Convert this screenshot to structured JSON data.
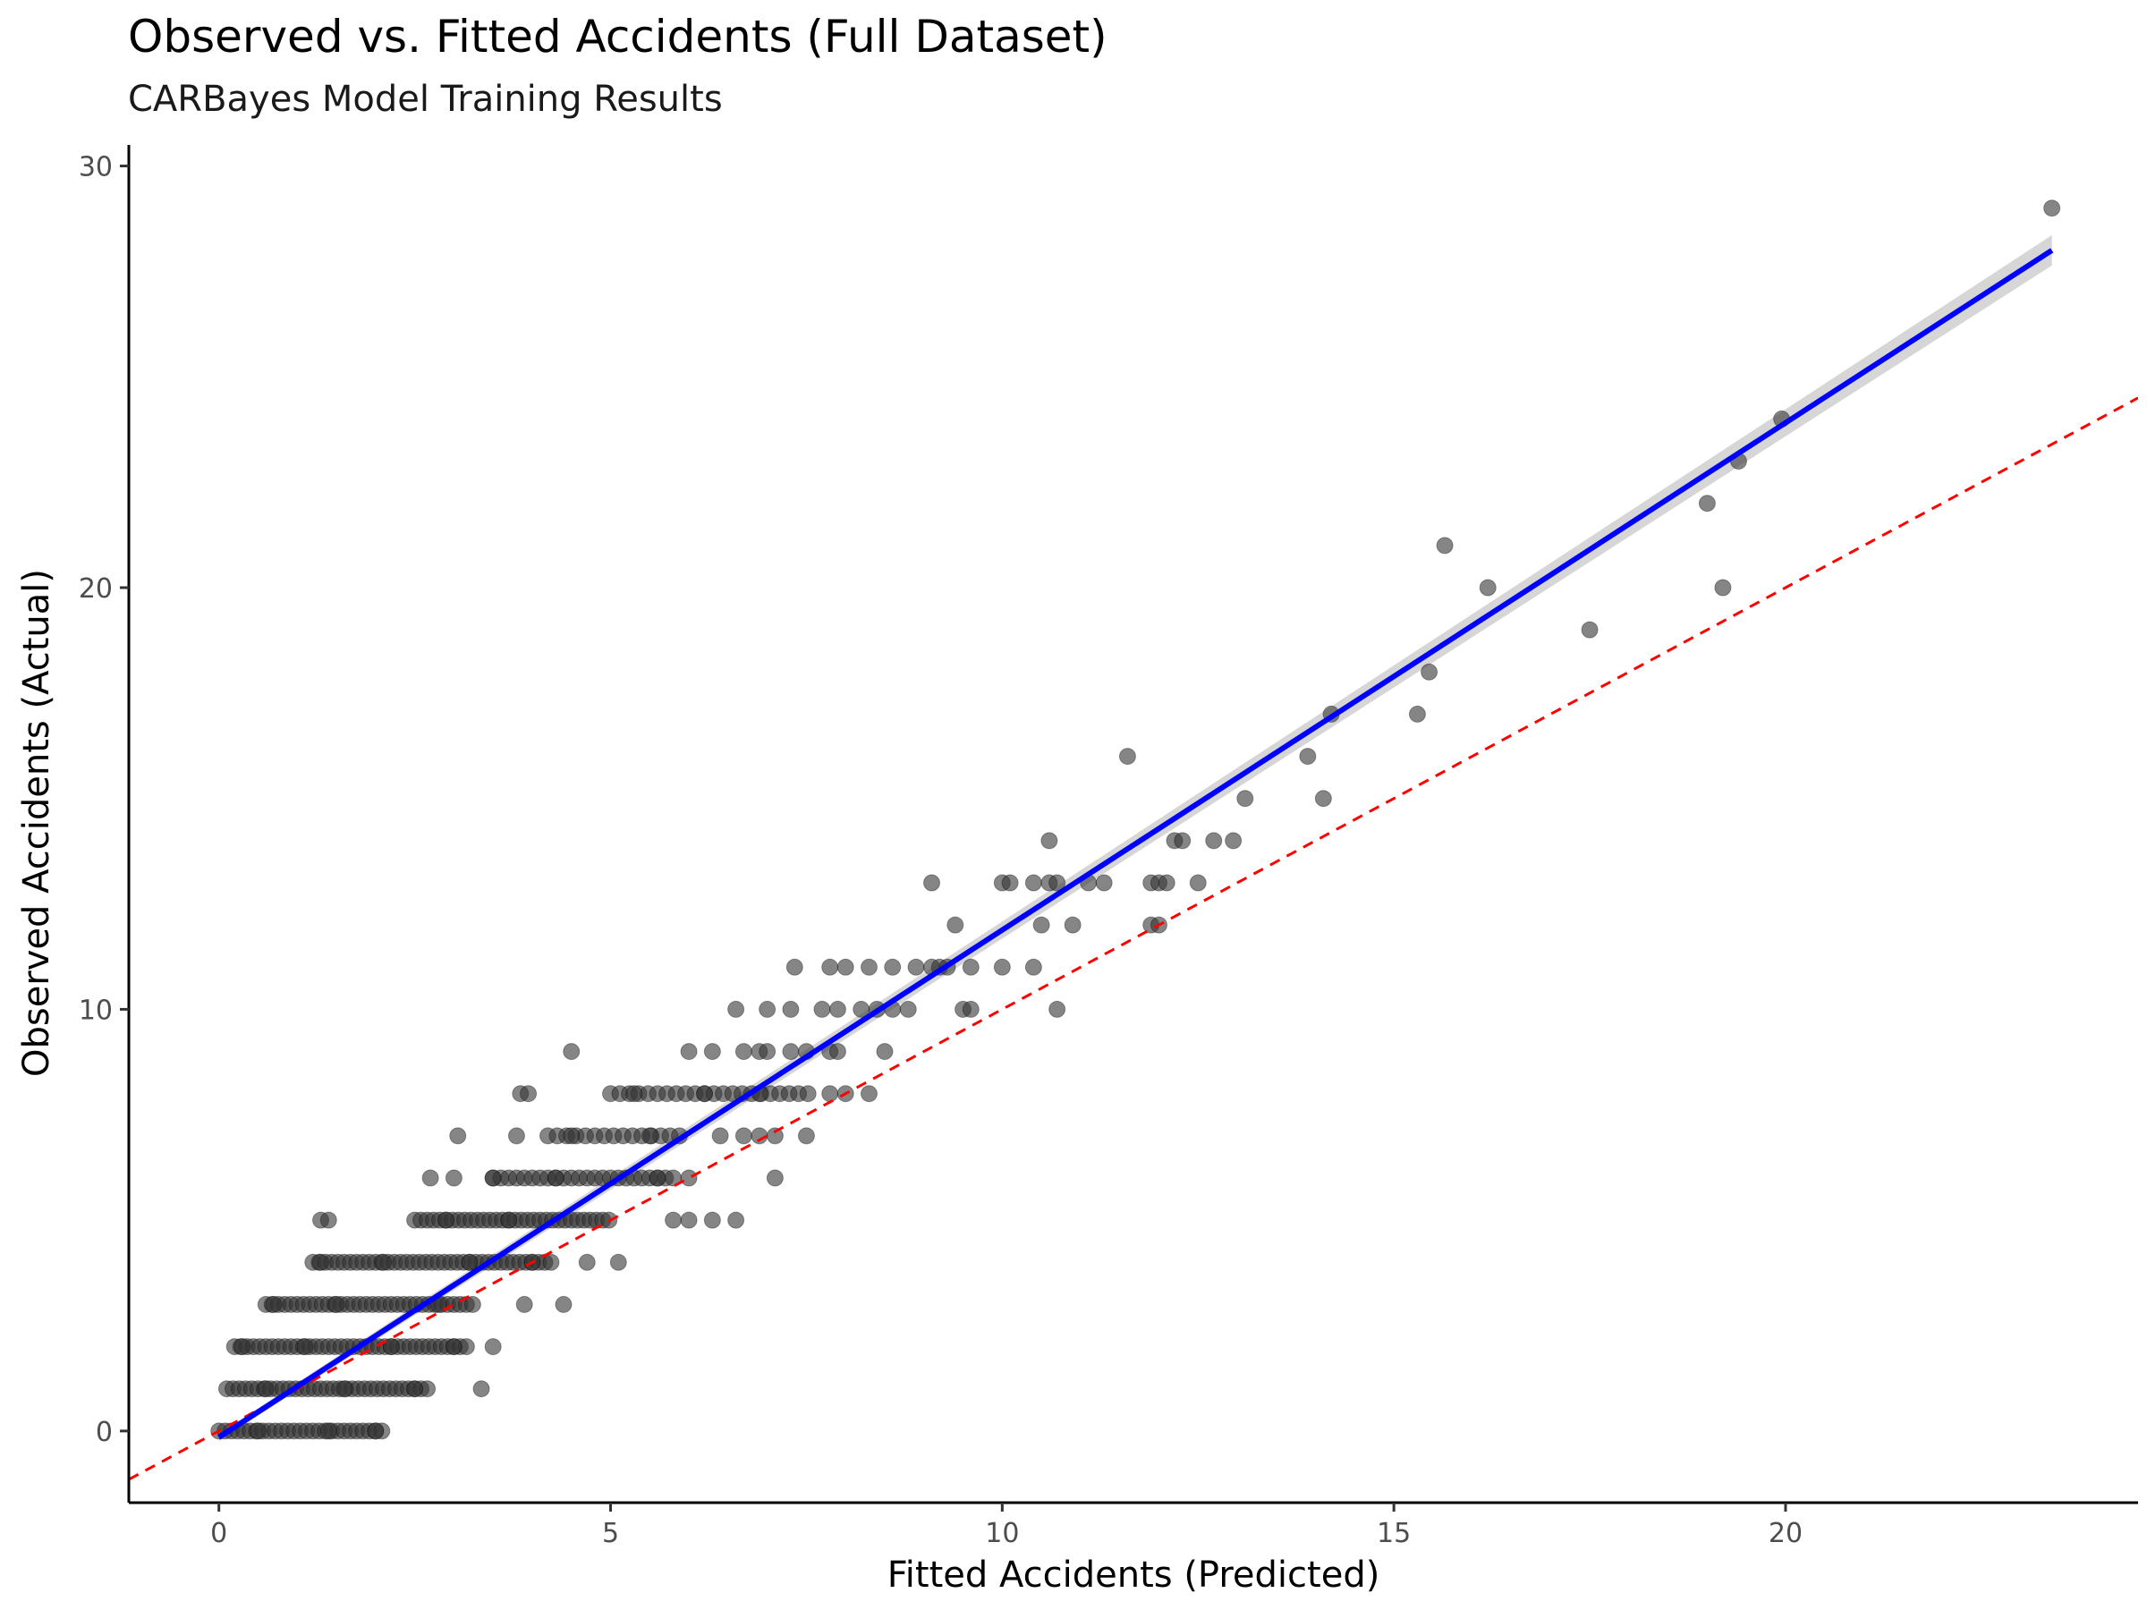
{
  "chart_data": {
    "type": "scatter",
    "title": "Observed vs. Fitted Accidents (Full Dataset)",
    "subtitle": "CARBayes Model Training Results",
    "xlabel": "Fitted Accidents (Predicted)",
    "ylabel": "Observed Accidents (Actual)",
    "xlim": [
      -1.15,
      24.5
    ],
    "ylim": [
      -1.7,
      30.5
    ],
    "x_ticks": [
      0,
      5,
      10,
      15,
      20
    ],
    "y_ticks": [
      0,
      10,
      20,
      30
    ],
    "grid": false,
    "point_color": "#333333",
    "fit_line": {
      "label": "linear fit",
      "color": "#0000ff",
      "x": [
        0,
        23.4
      ],
      "y": [
        -0.15,
        28.0
      ]
    },
    "reference_line": {
      "label": "y = x",
      "color": "#ff0000",
      "style": "dashed",
      "slope": 1,
      "intercept": 0
    },
    "row_ranges": [
      {
        "y": 0,
        "x_from": 0.0,
        "x_to": 2.1,
        "step": 0.08
      },
      {
        "y": 1,
        "x_from": 0.1,
        "x_to": 2.7,
        "step": 0.08
      },
      {
        "y": 2,
        "x_from": 0.2,
        "x_to": 3.2,
        "step": 0.08
      },
      {
        "y": 3,
        "x_from": 0.6,
        "x_to": 3.3,
        "step": 0.08
      },
      {
        "y": 4,
        "x_from": 1.2,
        "x_to": 4.3,
        "step": 0.08
      },
      {
        "y": 5,
        "x_from": 2.5,
        "x_to": 5.0,
        "step": 0.08
      },
      {
        "y": 6,
        "x_from": 3.5,
        "x_to": 5.8,
        "step": 0.1
      },
      {
        "y": 7,
        "x_from": 4.2,
        "x_to": 5.9,
        "step": 0.12
      },
      {
        "y": 8,
        "x_from": 5.0,
        "x_to": 7.6,
        "step": 0.12
      }
    ],
    "points": [
      [
        0.5,
        0
      ],
      [
        1.4,
        0
      ],
      [
        2.0,
        0
      ],
      [
        0.6,
        1
      ],
      [
        1.6,
        1
      ],
      [
        2.5,
        1
      ],
      [
        3.35,
        1
      ],
      [
        0.3,
        2
      ],
      [
        1.1,
        2
      ],
      [
        2.2,
        2
      ],
      [
        3.0,
        2
      ],
      [
        3.5,
        2
      ],
      [
        0.7,
        3
      ],
      [
        1.5,
        3
      ],
      [
        2.8,
        3
      ],
      [
        3.9,
        3
      ],
      [
        4.4,
        3
      ],
      [
        1.3,
        4
      ],
      [
        2.1,
        4
      ],
      [
        3.2,
        4
      ],
      [
        4.0,
        4
      ],
      [
        4.7,
        4
      ],
      [
        5.1,
        4
      ],
      [
        1.3,
        5
      ],
      [
        1.4,
        5
      ],
      [
        2.9,
        5
      ],
      [
        3.7,
        5
      ],
      [
        5.8,
        5
      ],
      [
        6.0,
        5
      ],
      [
        6.3,
        5
      ],
      [
        6.6,
        5
      ],
      [
        2.7,
        6
      ],
      [
        3.0,
        6
      ],
      [
        3.5,
        6
      ],
      [
        4.3,
        6
      ],
      [
        5.6,
        6
      ],
      [
        6.0,
        6
      ],
      [
        7.1,
        6
      ],
      [
        3.05,
        7
      ],
      [
        3.8,
        7
      ],
      [
        4.5,
        7
      ],
      [
        5.5,
        7
      ],
      [
        6.4,
        7
      ],
      [
        6.7,
        7
      ],
      [
        6.9,
        7
      ],
      [
        7.1,
        7
      ],
      [
        7.5,
        7
      ],
      [
        3.85,
        8
      ],
      [
        3.95,
        8
      ],
      [
        5.3,
        8
      ],
      [
        6.2,
        8
      ],
      [
        6.9,
        8
      ],
      [
        7.8,
        8
      ],
      [
        8.0,
        8
      ],
      [
        8.3,
        8
      ],
      [
        4.5,
        9
      ],
      [
        6.0,
        9
      ],
      [
        6.3,
        9
      ],
      [
        6.7,
        9
      ],
      [
        6.9,
        9
      ],
      [
        7.0,
        9
      ],
      [
        7.3,
        9
      ],
      [
        7.5,
        9
      ],
      [
        7.8,
        9
      ],
      [
        7.9,
        9
      ],
      [
        8.5,
        9
      ],
      [
        6.6,
        10
      ],
      [
        7.0,
        10
      ],
      [
        7.3,
        10
      ],
      [
        7.7,
        10
      ],
      [
        7.9,
        10
      ],
      [
        8.2,
        10
      ],
      [
        8.4,
        10
      ],
      [
        8.6,
        10
      ],
      [
        8.8,
        10
      ],
      [
        9.5,
        10
      ],
      [
        9.6,
        10
      ],
      [
        10.7,
        10
      ],
      [
        7.35,
        11
      ],
      [
        7.8,
        11
      ],
      [
        8.0,
        11
      ],
      [
        8.3,
        11
      ],
      [
        8.6,
        11
      ],
      [
        8.9,
        11
      ],
      [
        9.1,
        11
      ],
      [
        9.2,
        11
      ],
      [
        9.3,
        11
      ],
      [
        9.6,
        11
      ],
      [
        10.0,
        11
      ],
      [
        10.4,
        11
      ],
      [
        9.4,
        12
      ],
      [
        10.5,
        12
      ],
      [
        10.9,
        12
      ],
      [
        11.9,
        12
      ],
      [
        12.0,
        12
      ],
      [
        9.1,
        13
      ],
      [
        10.0,
        13
      ],
      [
        10.1,
        13
      ],
      [
        10.4,
        13
      ],
      [
        10.6,
        13
      ],
      [
        10.7,
        13
      ],
      [
        11.1,
        13
      ],
      [
        11.3,
        13
      ],
      [
        11.9,
        13
      ],
      [
        12.0,
        13
      ],
      [
        12.1,
        13
      ],
      [
        12.5,
        13
      ],
      [
        10.6,
        14
      ],
      [
        12.2,
        14
      ],
      [
        12.3,
        14
      ],
      [
        12.7,
        14
      ],
      [
        12.95,
        14
      ],
      [
        13.1,
        15
      ],
      [
        14.1,
        15
      ],
      [
        11.6,
        16
      ],
      [
        13.9,
        16
      ],
      [
        14.2,
        17
      ],
      [
        15.3,
        17
      ],
      [
        15.45,
        18
      ],
      [
        17.5,
        19
      ],
      [
        16.2,
        20
      ],
      [
        19.2,
        20
      ],
      [
        15.65,
        21
      ],
      [
        19.0,
        22
      ],
      [
        19.4,
        23
      ],
      [
        19.95,
        24
      ],
      [
        23.4,
        29
      ]
    ]
  }
}
